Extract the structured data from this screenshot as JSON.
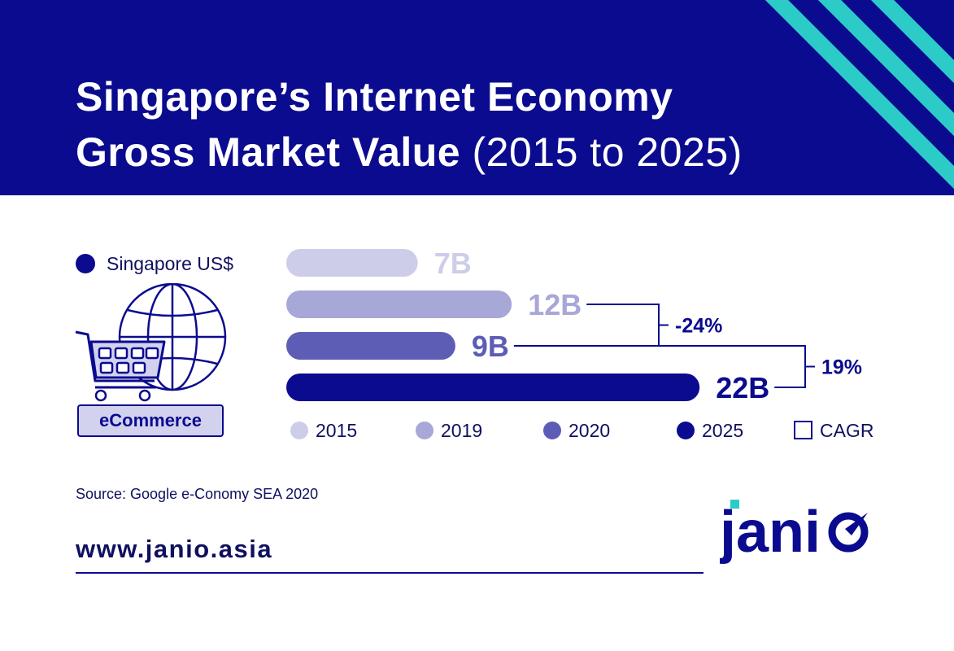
{
  "header": {
    "title_line1": "Singapore’s Internet Economy",
    "title_line2_bold": "Gross Market Value",
    "title_line2_light": "(2015 to 2025)",
    "bg_color": "#0b0b8f",
    "stripe_color": "#2ccbc8"
  },
  "sidebar": {
    "legend_label": "Singapore US$",
    "category_label": "eCommerce",
    "icon": "globe-shopping-cart-icon"
  },
  "chart_data": {
    "type": "bar",
    "orientation": "horizontal",
    "unit": "US$ B",
    "categories": [
      "2015",
      "2019",
      "2020",
      "2025"
    ],
    "values": [
      7,
      12,
      9,
      22
    ],
    "value_labels": [
      "7B",
      "12B",
      "9B",
      "22B"
    ],
    "colors": [
      "#cdcdea",
      "#a7a7d8",
      "#5d5db5",
      "#0b0b8f"
    ],
    "legend": [
      "2015",
      "2019",
      "2020",
      "2025"
    ],
    "legend_placement": "bottom",
    "cagr_label": "CAGR",
    "annotations": [
      {
        "from": "2019",
        "to": "2020",
        "label": "-24%"
      },
      {
        "from": "2020",
        "to": "2025",
        "label": "19%"
      }
    ],
    "grid": false
  },
  "footer": {
    "source": "Source: Google e-Conomy SEA 2020",
    "url": "www.janio.asia",
    "logo_text": "janio",
    "logo_accent": "#2ccbc8"
  }
}
